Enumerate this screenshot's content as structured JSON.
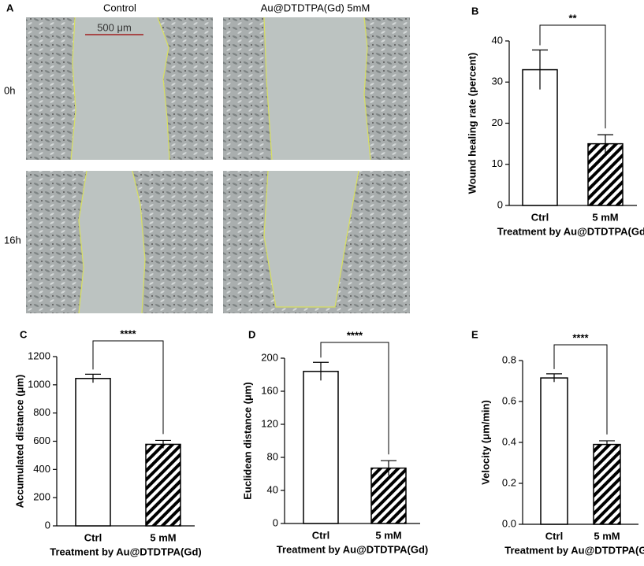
{
  "panel_a": {
    "label": "A",
    "columns": [
      "Control",
      "Au@DTDTPA(Gd) 5mM"
    ],
    "rows": [
      "0h",
      "16h"
    ],
    "scale_bar": "500 μm"
  },
  "chart_data": [
    {
      "type": "bar",
      "label": "B",
      "categories": [
        "Ctrl",
        "5 mM"
      ],
      "values": [
        33,
        15
      ],
      "errors": [
        4.8,
        2.2
      ],
      "ylabel": "Wound healing rate (percent)",
      "xlabel": "Treatment by Au@DTDTPA(Gd)",
      "annotation": "**",
      "ylim": [
        0,
        40
      ],
      "yticks": [
        0,
        10,
        20,
        30,
        40
      ],
      "bar_styles": [
        "open",
        "hatched"
      ]
    },
    {
      "type": "bar",
      "label": "C",
      "categories": [
        "Ctrl",
        "5 mM"
      ],
      "values": [
        1045,
        578
      ],
      "errors": [
        30,
        28
      ],
      "ylabel": "Accumulated distance (μm)",
      "xlabel": "Treatment by Au@DTDTPA(Gd)",
      "annotation": "****",
      "ylim": [
        0,
        1200
      ],
      "yticks": [
        0,
        200,
        400,
        600,
        800,
        1000,
        1200
      ],
      "bar_styles": [
        "open",
        "hatched"
      ]
    },
    {
      "type": "bar",
      "label": "D",
      "categories": [
        "Ctrl",
        "5 mM"
      ],
      "values": [
        184,
        67
      ],
      "errors": [
        11,
        9
      ],
      "ylabel": "Euclidean distance (μm)",
      "xlabel": "Treatment by Au@DTDTPA(Gd)",
      "annotation": "****",
      "ylim": [
        0,
        200
      ],
      "yticks": [
        0,
        40,
        80,
        120,
        160,
        200
      ],
      "bar_styles": [
        "open",
        "hatched"
      ]
    },
    {
      "type": "bar",
      "label": "E",
      "categories": [
        "Ctrl",
        "5 mM"
      ],
      "values": [
        0.715,
        0.39
      ],
      "errors": [
        0.02,
        0.018
      ],
      "ylabel": "Velocity (μm/min)",
      "xlabel": "Treatment by Au@DTDTPA(Gd)",
      "annotation": "****",
      "ylim": [
        0,
        0.8
      ],
      "yticks": [
        {
          "value": 0,
          "label": "0.0"
        },
        0.2,
        0.4,
        0.6,
        0.8
      ],
      "bar_styles": [
        "open",
        "hatched"
      ]
    }
  ]
}
